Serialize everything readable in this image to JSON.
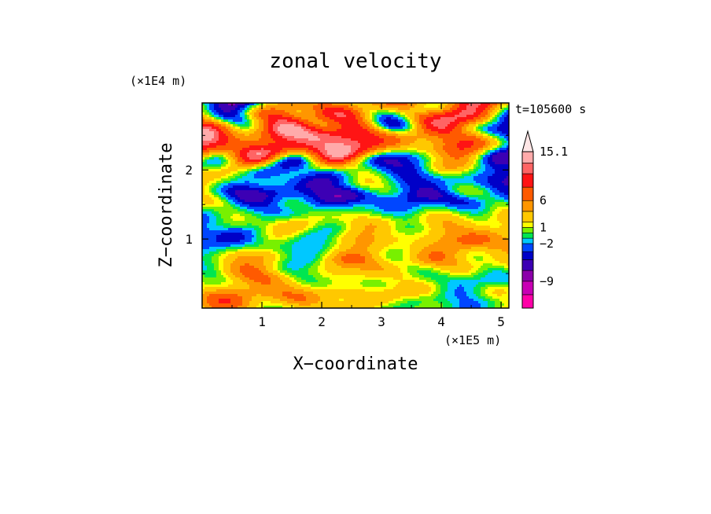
{
  "chart_data": {
    "type": "heatmap",
    "title": "zonal velocity",
    "xlabel": "X−coordinate",
    "ylabel": "Z−coordinate",
    "x_unit": "(×1E5 m)",
    "y_unit": "(×1E4 m)",
    "time_label": "t=105600 s",
    "xlim": [
      0,
      5.13
    ],
    "ylim": [
      0,
      2.97
    ],
    "x_ticks": [
      "1",
      "2",
      "3",
      "4",
      "5"
    ],
    "x_tick_values": [
      1,
      2,
      3,
      4,
      5
    ],
    "y_ticks": [
      "1",
      "2"
    ],
    "y_tick_values": [
      1,
      2
    ],
    "colorbar": {
      "levels": [
        -14,
        -11.5,
        -9,
        -7,
        -5,
        -3.5,
        -2,
        -1,
        0,
        1,
        2,
        4,
        6,
        8.5,
        11,
        13,
        15.1
      ],
      "colors": [
        "#ff00a8",
        "#c800b4",
        "#8c00aa",
        "#3c00b4",
        "#0000c8",
        "#0046ff",
        "#00c8ff",
        "#00e650",
        "#78f000",
        "#ffff00",
        "#ffc800",
        "#ff9600",
        "#ff5a00",
        "#ff1414",
        "#ff6464",
        "#ffaaaa"
      ],
      "extend_color": "#ffe6e6",
      "tick_labels": [
        "15.1",
        "6",
        "1",
        "−2",
        "−9"
      ],
      "tick_values": [
        15.1,
        6,
        1,
        -2,
        -9
      ]
    },
    "field_description_note": ""
  }
}
